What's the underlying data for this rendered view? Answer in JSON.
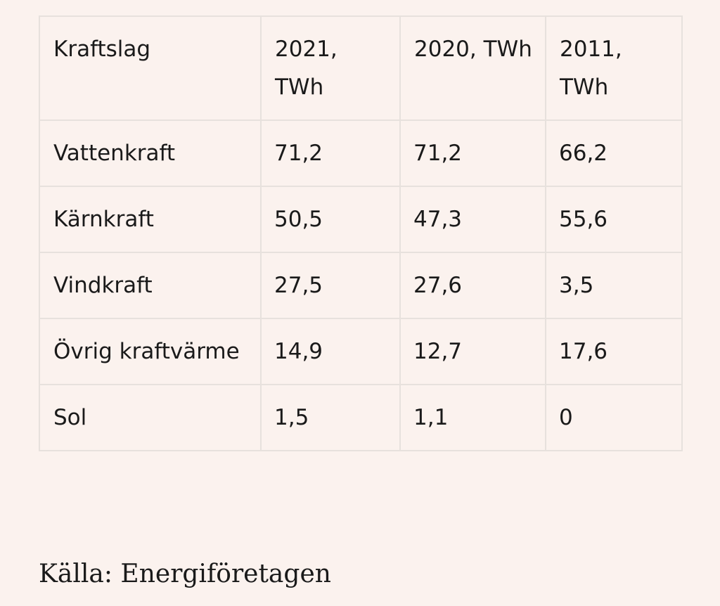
{
  "table": {
    "headers": [
      "Kraftslag",
      "2021, TWh",
      "2020, TWh",
      "2011, TWh"
    ],
    "rows": [
      [
        "Vattenkraft",
        "71,2",
        "71,2",
        "66,2"
      ],
      [
        "Kärnkraft",
        "50,5",
        "47,3",
        "55,6"
      ],
      [
        "Vindkraft",
        "27,5",
        "27,6",
        "3,5"
      ],
      [
        "Övrig kraftvärme",
        "14,9",
        "12,7",
        "17,6"
      ],
      [
        "Sol",
        "1,5",
        "1,1",
        "0"
      ]
    ]
  },
  "source": "Källa: Energiföretagen"
}
